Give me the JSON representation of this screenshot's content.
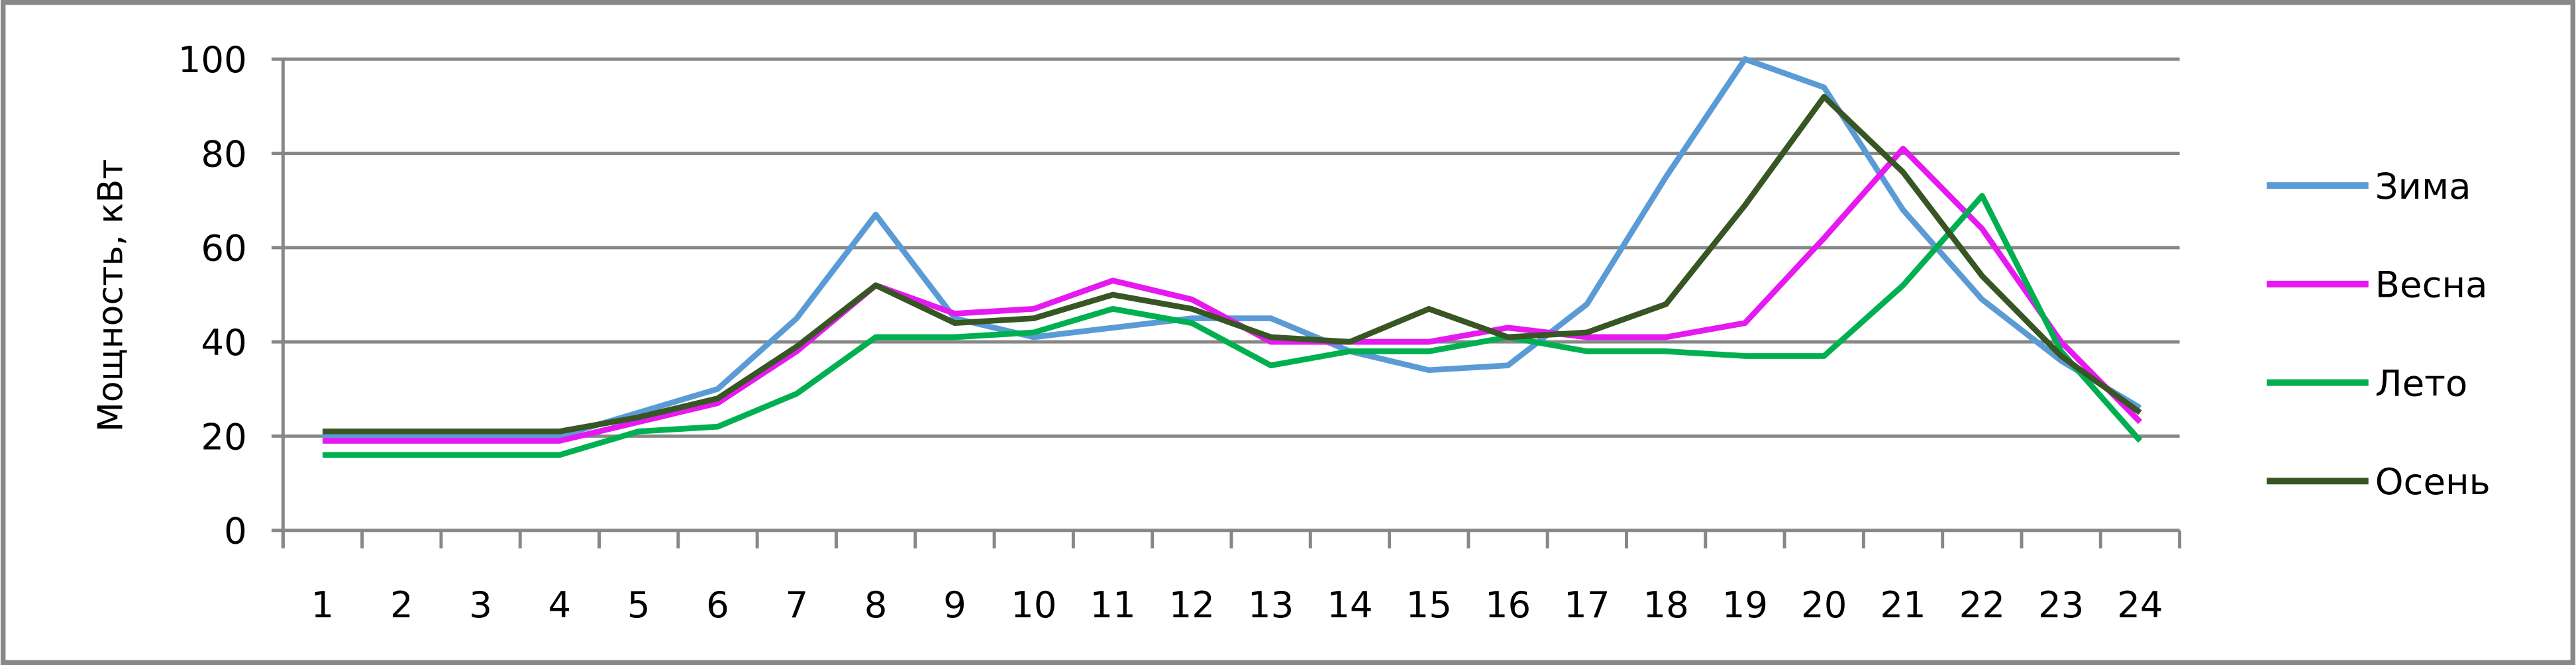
{
  "chart_data": {
    "type": "line",
    "title": "",
    "xlabel": "",
    "ylabel": "Мощность, кВт",
    "ylim": [
      0,
      100
    ],
    "yticks": [
      "0",
      "20",
      "40",
      "60",
      "80",
      "100"
    ],
    "grid": true,
    "legend_position": "right",
    "categories": [
      "1",
      "2",
      "3",
      "4",
      "5",
      "6",
      "7",
      "8",
      "9",
      "10",
      "11",
      "12",
      "13",
      "14",
      "15",
      "16",
      "17",
      "18",
      "19",
      "20",
      "21",
      "22",
      "23",
      "24"
    ],
    "series": [
      {
        "name": "Зима",
        "color": "#5b9bd5",
        "values": [
          20,
          20,
          20,
          20,
          25,
          30,
          45,
          67,
          45,
          41,
          43,
          45,
          45,
          38,
          34,
          35,
          48,
          75,
          100,
          94,
          68,
          49,
          36,
          26
        ]
      },
      {
        "name": "Весна",
        "color": "#e619f0",
        "values": [
          19,
          19,
          19,
          19,
          23,
          27,
          38,
          52,
          46,
          47,
          53,
          49,
          40,
          40,
          40,
          43,
          41,
          41,
          44,
          62,
          81,
          64,
          40,
          23
        ]
      },
      {
        "name": "Лето",
        "color": "#00b050",
        "values": [
          16,
          16,
          16,
          16,
          21,
          22,
          29,
          41,
          41,
          42,
          47,
          44,
          35,
          38,
          38,
          41,
          38,
          38,
          37,
          37,
          52,
          71,
          38,
          19
        ]
      },
      {
        "name": "Осень",
        "color": "#375623",
        "values": [
          21,
          21,
          21,
          21,
          24,
          28,
          39,
          52,
          44,
          45,
          50,
          47,
          41,
          40,
          47,
          41,
          42,
          48,
          69,
          92,
          76,
          54,
          37,
          25
        ]
      }
    ]
  }
}
